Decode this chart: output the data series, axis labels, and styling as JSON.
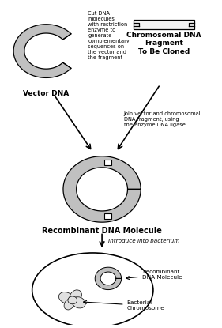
{
  "bg_color": "#ffffff",
  "line_color": "#000000",
  "fill_gray": "#c0c0c0",
  "labels": {
    "vector_dna": "Vector DNA",
    "cut_dna": "Cut DNA\nmolecules\nwith restriction\nenzyme to\ngenerate\ncomplementary\nsequences on\nthe vector and\nthe fragment",
    "chromosomal": "Chromosomal DNA\nFragment\nTo Be Cloned",
    "join": "Join vector and chromosomal\nDNA fragment, using\nthe enzyme DNA ligase",
    "recombinant": "Recombinant DNA Molecule",
    "introduce": "Introduce into bacterium",
    "recombinant2": "Recombinant\nDNA Molecule",
    "bacterial_chrom": "Bacterial\nChromosome"
  }
}
